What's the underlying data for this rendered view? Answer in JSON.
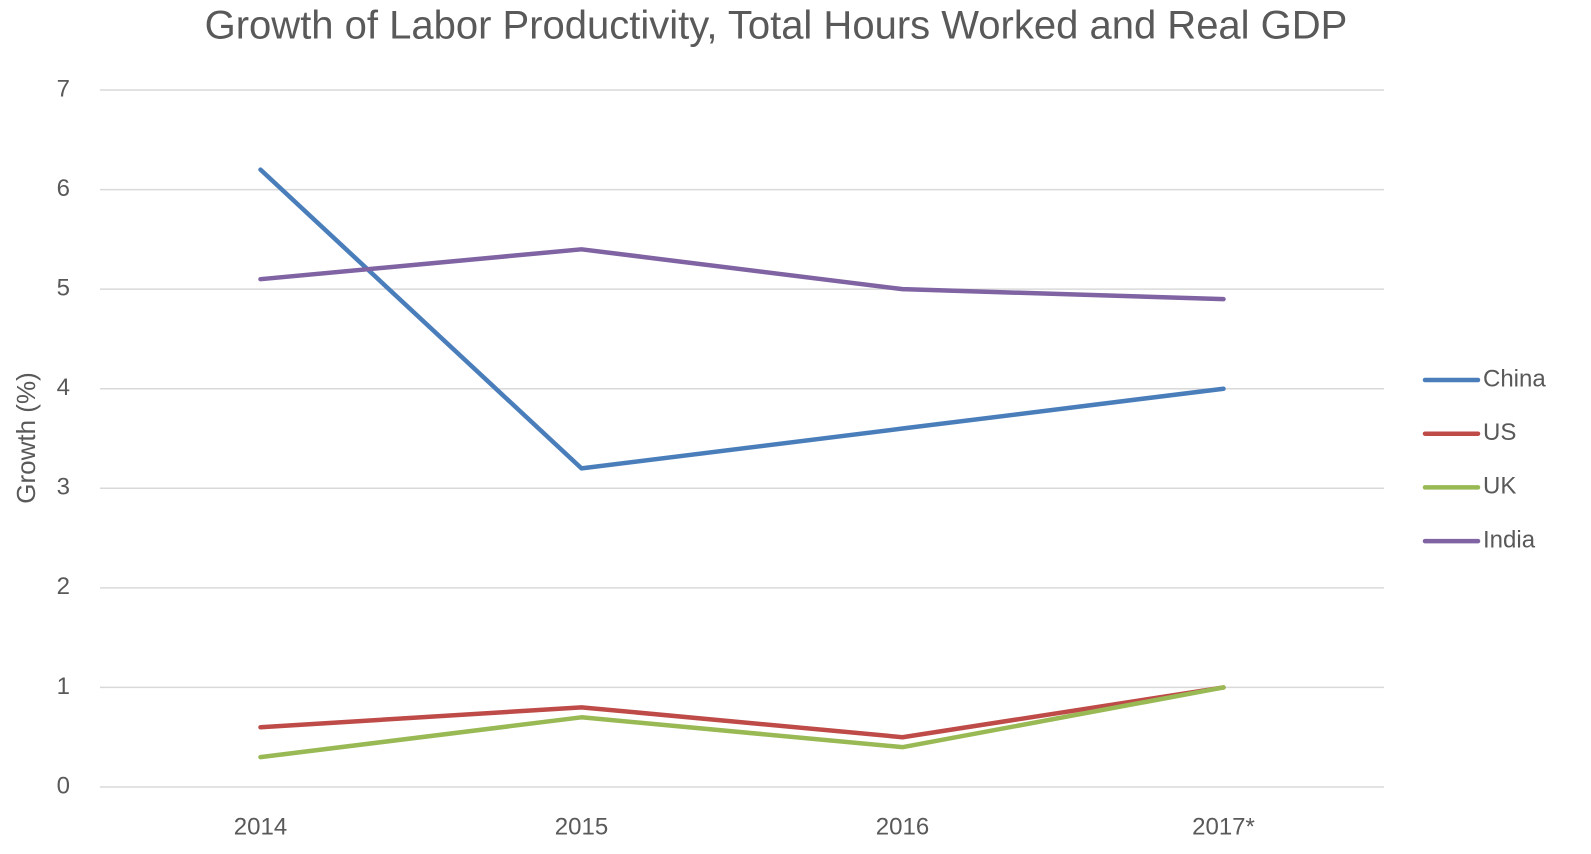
{
  "chart_data": {
    "type": "line",
    "title": "Growth of Labor Productivity, Total Hours Worked and Real GDP",
    "y_label": "Growth (%)",
    "categories": [
      "2014",
      "2015",
      "2016",
      "2017*"
    ],
    "series": [
      {
        "name": "China",
        "color": "#4a7ebb",
        "values": [
          6.2,
          3.2,
          3.6,
          4.0
        ]
      },
      {
        "name": "US",
        "color": "#be4b48",
        "values": [
          0.6,
          0.8,
          0.5,
          1.0
        ]
      },
      {
        "name": "UK",
        "color": "#98b954",
        "values": [
          0.3,
          0.7,
          0.4,
          1.0
        ]
      },
      {
        "name": "India",
        "color": "#7f63a2",
        "values": [
          5.1,
          5.4,
          5.0,
          4.9
        ]
      }
    ],
    "ylim": [
      0,
      7
    ],
    "yticks": [
      0,
      1,
      2,
      3,
      4,
      5,
      6,
      7
    ],
    "grid": true,
    "legend": "right"
  }
}
